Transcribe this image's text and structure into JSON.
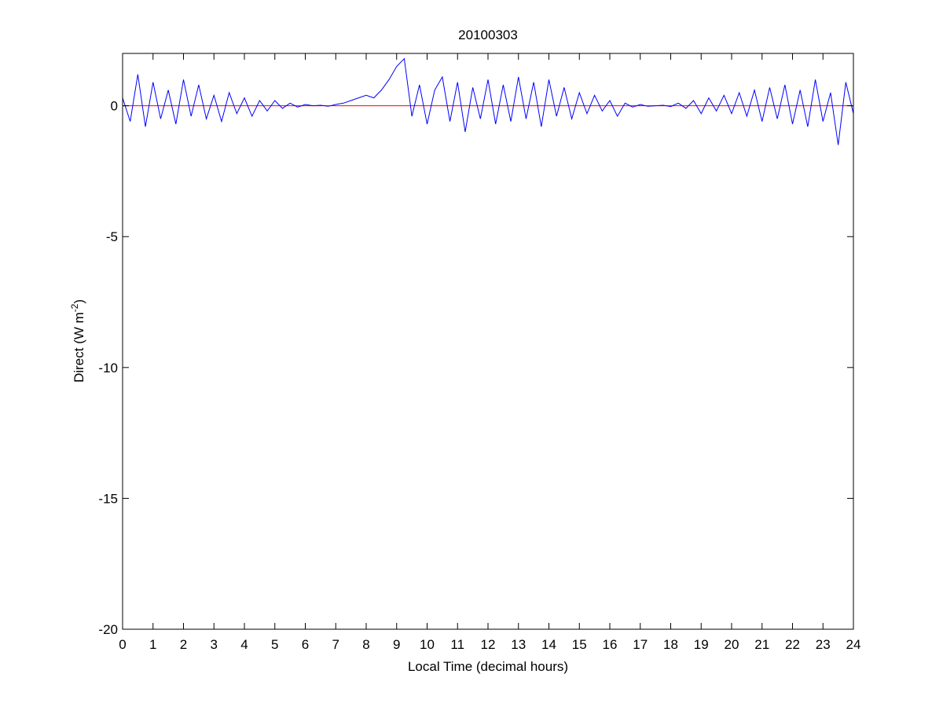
{
  "chart_data": {
    "type": "line",
    "title": "20100303",
    "xlabel": "Local Time (decimal hours)",
    "ylabel": {
      "text": "Direct (W m",
      "superscript": "-2",
      "suffix": ")"
    },
    "x": [
      0,
      0.25,
      0.5,
      0.75,
      1,
      1.25,
      1.5,
      1.75,
      2,
      2.25,
      2.5,
      2.75,
      3,
      3.25,
      3.5,
      3.75,
      4,
      4.25,
      4.5,
      4.75,
      5,
      5.25,
      5.5,
      5.75,
      6,
      6.25,
      6.5,
      6.75,
      7,
      7.25,
      7.5,
      7.75,
      8,
      8.25,
      8.5,
      8.75,
      9,
      9.25,
      9.5,
      9.75,
      10,
      10.25,
      10.5,
      10.75,
      11,
      11.25,
      11.5,
      11.75,
      12,
      12.25,
      12.5,
      12.75,
      13,
      13.25,
      13.5,
      13.75,
      14,
      14.25,
      14.5,
      14.75,
      15,
      15.25,
      15.5,
      15.75,
      16,
      16.25,
      16.5,
      16.75,
      17,
      17.25,
      17.5,
      17.75,
      18,
      18.25,
      18.5,
      18.75,
      19,
      19.25,
      19.5,
      19.75,
      20,
      20.25,
      20.5,
      20.75,
      21,
      21.25,
      21.5,
      21.75,
      22,
      22.25,
      22.5,
      22.75,
      23,
      23.25,
      23.5,
      23.75,
      24
    ],
    "series": [
      {
        "color": "#ff0000",
        "x": [
          0,
          24
        ],
        "values": [
          0,
          0
        ]
      },
      {
        "color": "#0000ff",
        "values": [
          0.3,
          -0.6,
          1.2,
          -0.8,
          0.9,
          -0.5,
          0.6,
          -0.7,
          1.0,
          -0.4,
          0.8,
          -0.5,
          0.4,
          -0.6,
          0.5,
          -0.3,
          0.3,
          -0.4,
          0.2,
          -0.2,
          0.2,
          -0.1,
          0.1,
          -0.05,
          0.05,
          0,
          0.02,
          -0.02,
          0.05,
          0.1,
          0.2,
          0.3,
          0.4,
          0.3,
          0.6,
          1.0,
          1.5,
          1.8,
          -0.4,
          0.8,
          -0.7,
          0.6,
          1.1,
          -0.6,
          0.9,
          -1.0,
          0.7,
          -0.5,
          1.0,
          -0.7,
          0.8,
          -0.6,
          1.1,
          -0.5,
          0.9,
          -0.8,
          1.0,
          -0.4,
          0.7,
          -0.5,
          0.5,
          -0.3,
          0.4,
          -0.2,
          0.2,
          -0.4,
          0.1,
          -0.05,
          0.05,
          -0.02,
          0,
          0.02,
          -0.03,
          0.1,
          -0.1,
          0.2,
          -0.3,
          0.3,
          -0.2,
          0.4,
          -0.3,
          0.5,
          -0.4,
          0.6,
          -0.6,
          0.7,
          -0.5,
          0.8,
          -0.7,
          0.6,
          -0.8,
          1.0,
          -0.6,
          0.5,
          -1.5,
          0.9,
          -0.3
        ]
      }
    ],
    "xlim": [
      0,
      24
    ],
    "xticks": [
      0,
      1,
      2,
      3,
      4,
      5,
      6,
      7,
      8,
      9,
      10,
      11,
      12,
      13,
      14,
      15,
      16,
      17,
      18,
      19,
      20,
      21,
      22,
      23,
      24
    ],
    "ylim": [
      -20,
      2
    ],
    "yticks": [
      -20,
      -15,
      -10,
      -5,
      0
    ],
    "grid": false
  }
}
